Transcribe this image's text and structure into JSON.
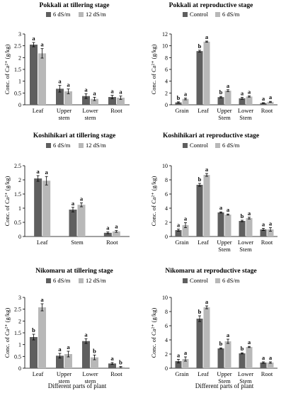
{
  "colors": {
    "series1": "#5f5f5f",
    "series2": "#b8b8b8",
    "axis": "#000000"
  },
  "chart_data": [
    {
      "type": "bar",
      "title": "Pokkali at tillering stage",
      "ylabel": "Conc. of Ca²⁺ (g/kg)",
      "xlabel": "",
      "categories": [
        "Leaf",
        "Upper stem",
        "Lower stem",
        "Root"
      ],
      "ylim": [
        0,
        3
      ],
      "yticks": [
        "0",
        "0.5",
        "1",
        "1.5",
        "2",
        "2.5",
        "3"
      ],
      "legend": "top-center",
      "series": [
        {
          "name": "6 dS/m",
          "values": [
            2.55,
            0.68,
            0.37,
            0.33
          ],
          "errors": [
            0.09,
            0.14,
            0.1,
            0.07
          ],
          "letters": [
            "a",
            "a",
            "a",
            "a"
          ]
        },
        {
          "name": "12 dS/m",
          "values": [
            2.18,
            0.57,
            0.25,
            0.3
          ],
          "errors": [
            0.2,
            0.1,
            0.07,
            0.07
          ],
          "letters": [
            "a",
            "a",
            "a",
            "a"
          ]
        }
      ]
    },
    {
      "type": "bar",
      "title": "Pokkali at reproductive stage",
      "ylabel": "Conc. of Ca²⁺ (g/kg)",
      "xlabel": "",
      "categories": [
        "Grain",
        "Leaf",
        "Upper Stem",
        "Lower Stem",
        "Root"
      ],
      "ylim": [
        0,
        12
      ],
      "yticks": [
        "0",
        "2",
        "4",
        "6",
        "8",
        "10",
        "12"
      ],
      "legend": "top-center",
      "series": [
        {
          "name": "Control",
          "values": [
            0.4,
            9.1,
            1.3,
            1.1,
            0.3
          ],
          "errors": [
            0.1,
            0.15,
            0.12,
            0.15,
            0.05
          ],
          "letters": [
            "b",
            "b",
            "b",
            "a",
            "a"
          ]
        },
        {
          "name": "6 dS/m",
          "values": [
            1.0,
            10.7,
            2.4,
            1.4,
            0.5
          ],
          "errors": [
            0.15,
            0.1,
            0.15,
            0.1,
            0.08
          ],
          "letters": [
            "a",
            "a",
            "a",
            "a",
            "a"
          ]
        }
      ]
    },
    {
      "type": "bar",
      "title": "Koshihikari at tillering stage",
      "ylabel": "Conc. of Ca²⁺ (g/kg)",
      "xlabel": "",
      "categories": [
        "Leaf",
        "Stem",
        "Root"
      ],
      "ylim": [
        0,
        2.5
      ],
      "yticks": [
        "0",
        "0.5",
        "1",
        "1.5",
        "2",
        "2.5"
      ],
      "legend": "top-center",
      "series": [
        {
          "name": "6 dS/m",
          "values": [
            2.05,
            0.95,
            0.13
          ],
          "errors": [
            0.1,
            0.08,
            0.03
          ],
          "letters": [
            "a",
            "a",
            "a"
          ]
        },
        {
          "name": "12 dS/m",
          "values": [
            1.97,
            1.12,
            0.18
          ],
          "errors": [
            0.15,
            0.07,
            0.03
          ],
          "letters": [
            "a",
            "a",
            "a"
          ]
        }
      ]
    },
    {
      "type": "bar",
      "title": "Koshihikari at reproductive stage",
      "ylabel": "Conc. of Ca²⁺ (g/kg)",
      "xlabel": "",
      "categories": [
        "Grain",
        "Leaf",
        "Upper Stem",
        "Lower Stem",
        "Root"
      ],
      "ylim": [
        0,
        10
      ],
      "yticks": [
        "0",
        "2",
        "4",
        "6",
        "8",
        "10"
      ],
      "legend": "top-center",
      "series": [
        {
          "name": "Control",
          "values": [
            0.9,
            7.3,
            3.4,
            2.2,
            1.0
          ],
          "errors": [
            0.15,
            0.2,
            0.08,
            0.1,
            0.15
          ],
          "letters": [
            "a",
            "b",
            "a",
            "b",
            "a"
          ]
        },
        {
          "name": "6 dS/m",
          "values": [
            1.6,
            8.7,
            3.1,
            2.6,
            1.0
          ],
          "errors": [
            0.35,
            0.2,
            0.08,
            0.12,
            0.25
          ],
          "letters": [
            "a",
            "a",
            "a",
            "a",
            "a"
          ]
        }
      ]
    },
    {
      "type": "bar",
      "title": "Nikomaru at tillering stage",
      "ylabel": "Conc. of Ca²⁺ (g/kg)",
      "xlabel": "Different parts of plant",
      "categories": [
        "Leaf",
        "Upper stem",
        "Lower stem",
        "Root"
      ],
      "ylim": [
        0,
        3
      ],
      "yticks": [
        "0",
        "0.5",
        "1",
        "1.5",
        "2",
        "2.5",
        "3"
      ],
      "legend": "top-center",
      "series": [
        {
          "name": "6 dS/m",
          "values": [
            1.32,
            0.53,
            1.15,
            0.2
          ],
          "errors": [
            0.12,
            0.1,
            0.1,
            0.04
          ],
          "letters": [
            "b",
            "a",
            "a",
            "a"
          ]
        },
        {
          "name": "12 dS/m",
          "values": [
            2.58,
            0.6,
            0.46,
            0.05
          ],
          "errors": [
            0.15,
            0.12,
            0.1,
            0.02
          ],
          "letters": [
            "a",
            "a",
            "b",
            "b"
          ]
        }
      ]
    },
    {
      "type": "bar",
      "title": "Nikomaru at reproductive stage",
      "ylabel": "Conc. of Ca²⁺ (g/kg)",
      "xlabel": "Different parts of plant",
      "categories": [
        "Grain",
        "Leaf",
        "Upper Stem",
        "Lower Stem",
        "Root"
      ],
      "ylim": [
        0,
        10
      ],
      "yticks": [
        "0",
        "2",
        "4",
        "6",
        "8",
        "10"
      ],
      "legend": "top-center",
      "series": [
        {
          "name": "Control",
          "values": [
            1.0,
            7.0,
            2.8,
            2.1,
            0.8
          ],
          "errors": [
            0.25,
            0.4,
            0.08,
            0.08,
            0.1
          ],
          "letters": [
            "a",
            "b",
            "b",
            "b",
            "a"
          ]
        },
        {
          "name": "6 dS/m",
          "values": [
            1.3,
            8.6,
            3.8,
            3.0,
            0.8
          ],
          "errors": [
            0.3,
            0.2,
            0.3,
            0.08,
            0.1
          ],
          "letters": [
            "a",
            "a",
            "a",
            "a",
            "a"
          ]
        }
      ]
    }
  ]
}
